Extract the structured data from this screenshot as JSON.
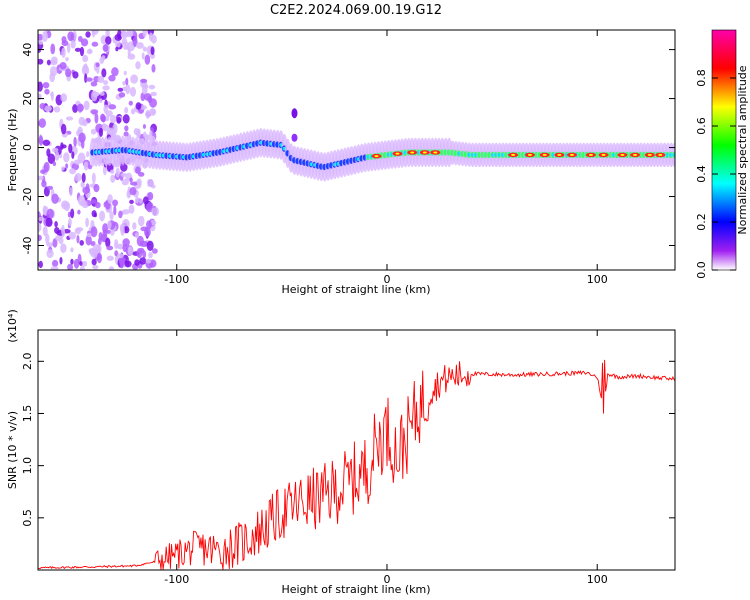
{
  "title": "C2E2.2024.069.00.19.G12",
  "chart_data": [
    {
      "type": "heatmap",
      "xlabel": "Height of straight line (km)",
      "ylabel": "Frequency (Hz)",
      "xlim": [
        -166,
        137
      ],
      "ylim": [
        -50,
        48
      ],
      "x_ticks": [
        -100,
        0,
        100
      ],
      "y_ticks": [
        -40,
        -20,
        0,
        20,
        40
      ],
      "grid": false,
      "colorbar": {
        "label": "Normalized spectral amplitude",
        "range": [
          0,
          1
        ],
        "ticks": [
          0.0,
          0.2,
          0.4,
          0.6,
          0.8
        ],
        "colormap": [
          "#ffffff",
          "#a020f0",
          "#0000ff",
          "#00ffff",
          "#00ff00",
          "#ffff00",
          "#ff0000",
          "#ff00aa"
        ]
      },
      "ridge": {
        "x": [
          -140,
          -125,
          -110,
          -95,
          -80,
          -70,
          -60,
          -50,
          -45,
          -40,
          -30,
          -20,
          -10,
          0,
          10,
          20,
          30,
          40,
          60,
          80,
          100,
          120,
          137
        ],
        "y": [
          -2,
          -1,
          -3,
          -4,
          -2,
          0,
          2,
          1,
          -5,
          -6,
          -8,
          -6,
          -4,
          -3,
          -2,
          -2,
          -2,
          -3,
          -3,
          -3,
          -3,
          -3,
          -3
        ]
      }
    },
    {
      "type": "line",
      "xlabel": "Height of straight line (km)",
      "ylabel": "SNR (10 * v/v)",
      "y_multiplier": "(x10⁴)",
      "xlim": [
        -166,
        137
      ],
      "ylim": [
        0,
        2.3
      ],
      "x_ticks": [
        -100,
        0,
        100
      ],
      "y_ticks": [
        0.5,
        1.0,
        1.5,
        2.0
      ],
      "grid": false,
      "series": [
        {
          "color": "#ff0000",
          "x": [
            -166,
            -140,
            -120,
            -110,
            -100,
            -90,
            -80,
            -70,
            -60,
            -50,
            -40,
            -30,
            -20,
            -10,
            -5,
            0,
            5,
            10,
            15,
            20,
            25,
            30,
            40,
            60,
            80,
            95,
            100,
            103,
            105,
            110,
            120,
            130,
            137
          ],
          "y": [
            0.02,
            0.03,
            0.04,
            0.08,
            0.15,
            0.22,
            0.18,
            0.25,
            0.38,
            0.55,
            0.65,
            0.7,
            0.82,
            0.95,
            1.2,
            1.35,
            1.1,
            1.3,
            1.55,
            1.7,
            1.8,
            1.85,
            1.88,
            1.87,
            1.88,
            1.89,
            1.85,
            1.55,
            1.88,
            1.85,
            1.86,
            1.84,
            1.83
          ]
        }
      ]
    }
  ]
}
